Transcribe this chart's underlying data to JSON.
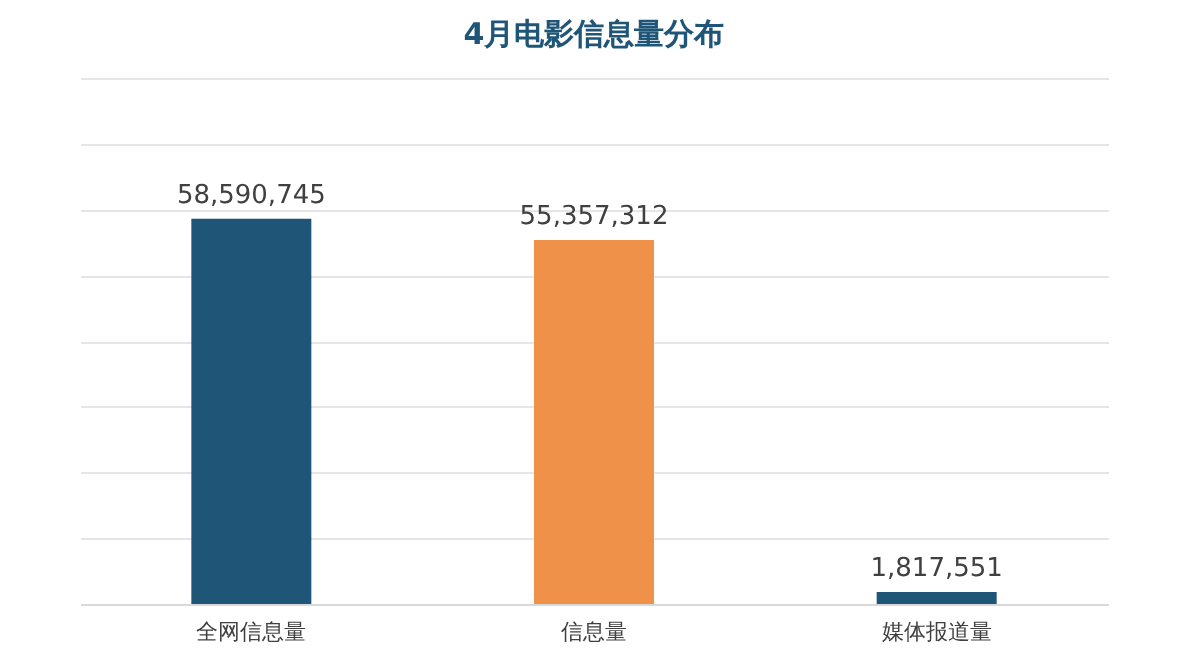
{
  "chart_data": {
    "type": "bar",
    "title": "4月电影信息量分布",
    "categories": [
      "全网信息量",
      "信息量",
      "媒体报道量"
    ],
    "values": [
      58590745,
      55357312,
      1817551
    ],
    "value_labels": [
      "58,590,745",
      "55,357,312",
      "1,817,551"
    ],
    "colors": [
      "#1f5577",
      "#f0914a",
      "#1f5577"
    ],
    "grid": "y",
    "tick_labels": "x",
    "legend": false
  }
}
